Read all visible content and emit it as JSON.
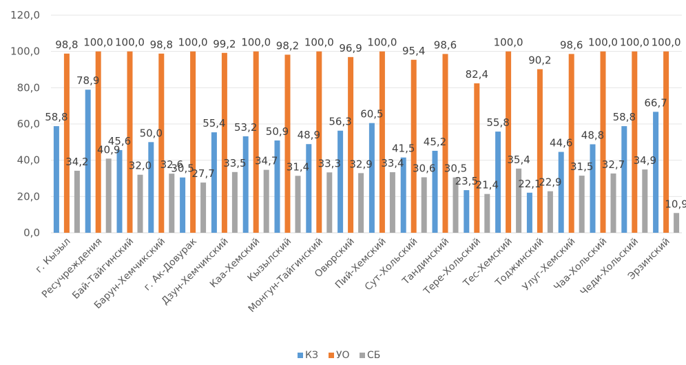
{
  "chart_data": {
    "type": "bar",
    "title": "",
    "xlabel": "",
    "ylabel": "",
    "ylim": [
      0,
      120
    ],
    "yticks": [
      "0,0",
      "20,0",
      "40,0",
      "60,0",
      "80,0",
      "100,0",
      "120,0"
    ],
    "grid": true,
    "legend_position": "bottom",
    "categories": [
      "г. Кызыл",
      "Ресучреждения",
      "Бай-Тайгинский",
      "Барун-Хемчикский",
      "г. Ак-Довурак",
      "Дзун-Хемчикский",
      "Каа-Хемский",
      "Кызылский",
      "Монгун-Тайгинский",
      "Овюрский",
      "Пий-Хемский",
      "Сут-Хольский",
      "Тандинский",
      "Тере-Хольский",
      "Тес-Хемский",
      "Тоджинский",
      "Улуг-Хемский",
      "Чаа-Хольский",
      "Чеди-Хольский",
      "Эрзинский"
    ],
    "series": [
      {
        "name": "КЗ",
        "color": "#5B9BD5",
        "values": [
          58.8,
          78.9,
          45.6,
          50.0,
          30.5,
          55.4,
          53.2,
          50.9,
          48.9,
          56.3,
          60.5,
          41.5,
          45.2,
          23.5,
          55.8,
          22.1,
          44.6,
          48.8,
          58.8,
          66.7
        ],
        "labels": [
          "58,8",
          "78,9",
          "45,6",
          "50,0",
          "30,5",
          "55,4",
          "53,2",
          "50,9",
          "48,9",
          "56,3",
          "60,5",
          "41,5",
          "45,2",
          "23,5",
          "55,8",
          "22,1",
          "44,6",
          "48,8",
          "58,8",
          "66,7"
        ]
      },
      {
        "name": "УО",
        "color": "#ED7D31",
        "values": [
          98.8,
          100.0,
          100.0,
          98.8,
          100.0,
          99.2,
          100.0,
          98.2,
          100.0,
          96.9,
          100.0,
          95.4,
          98.6,
          82.4,
          100.0,
          90.2,
          98.6,
          100.0,
          100.0,
          100.0
        ],
        "labels": [
          "98,8",
          "100,0",
          "100,0",
          "98,8",
          "100,0",
          "99,2",
          "100,0",
          "98,2",
          "100,0",
          "96,9",
          "100,0",
          "95,4",
          "98,6",
          "82,4",
          "100,0",
          "90,2",
          "98,6",
          "100,0",
          "100,0",
          "100,0"
        ]
      },
      {
        "name": "СБ",
        "color": "#A5A5A5",
        "values": [
          34.2,
          40.9,
          32.0,
          32.6,
          27.7,
          33.5,
          34.7,
          31.4,
          33.3,
          32.9,
          33.4,
          30.6,
          30.5,
          21.4,
          35.4,
          22.9,
          31.5,
          32.7,
          34.9,
          10.9
        ],
        "labels": [
          "34,2",
          "40,9",
          "32,0",
          "32,6",
          "27,7",
          "33,5",
          "34,7",
          "31,4",
          "33,3",
          "32,9",
          "33,4",
          "30,6",
          "30,5",
          "21,4",
          "35,4",
          "22,9",
          "31,5",
          "32,7",
          "34,9",
          "10,9"
        ]
      }
    ]
  }
}
